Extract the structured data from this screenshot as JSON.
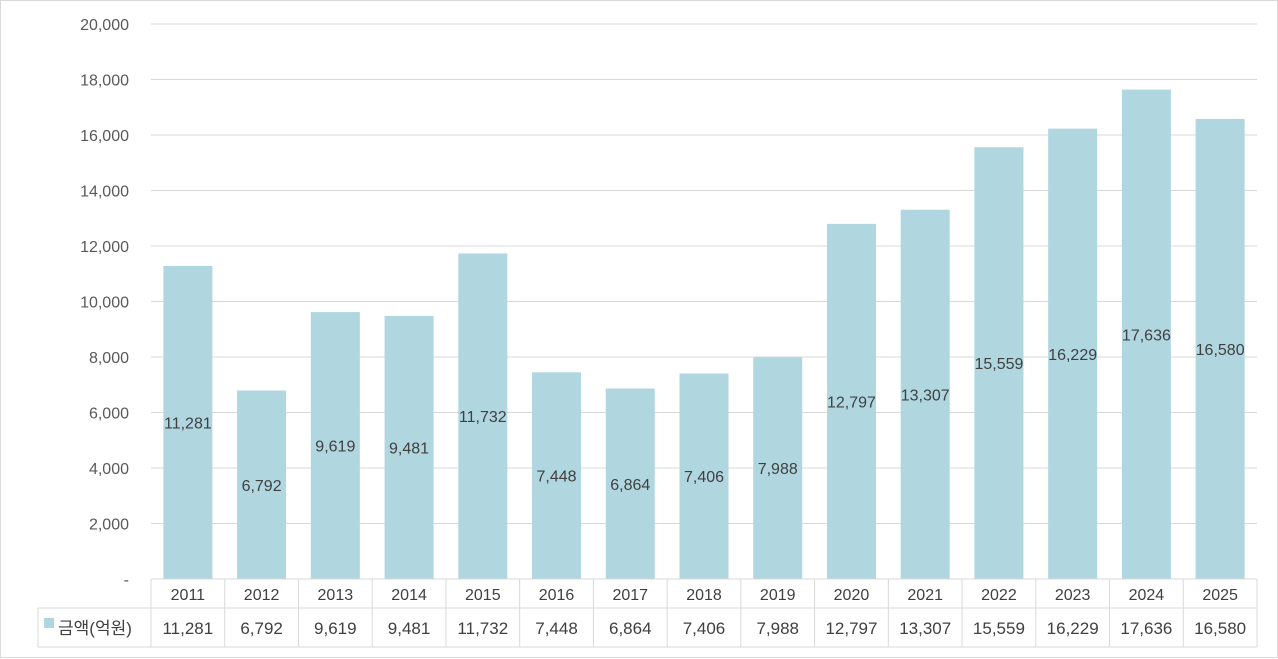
{
  "chart_data": {
    "type": "bar",
    "categories": [
      "2011",
      "2012",
      "2013",
      "2014",
      "2015",
      "2016",
      "2017",
      "2018",
      "2019",
      "2020",
      "2021",
      "2022",
      "2023",
      "2024",
      "2025"
    ],
    "series": [
      {
        "name": "금액(억원)",
        "values": [
          11281,
          6792,
          9619,
          9481,
          11732,
          7448,
          6864,
          7406,
          7988,
          12797,
          13307,
          15559,
          16229,
          17636,
          16580
        ],
        "labels": [
          "11,281",
          "6,792",
          "9,619",
          "9,481",
          "11,732",
          "7,448",
          "6,864",
          "7,406",
          "7,988",
          "12,797",
          "13,307",
          "15,559",
          "16,229",
          "17,636",
          "16,580"
        ],
        "color": "#b0d6e0"
      }
    ],
    "ylim": [
      0,
      20000
    ],
    "y_ticks": [
      "-",
      "2,000",
      "4,000",
      "6,000",
      "8,000",
      "10,000",
      "12,000",
      "14,000",
      "16,000",
      "18,000",
      "20,000"
    ],
    "grid": true,
    "legend": "data-table",
    "data_table": true
  },
  "colors": {
    "bar": "#b0d6e0",
    "grid": "#d9d9d9",
    "text": "#404040"
  }
}
